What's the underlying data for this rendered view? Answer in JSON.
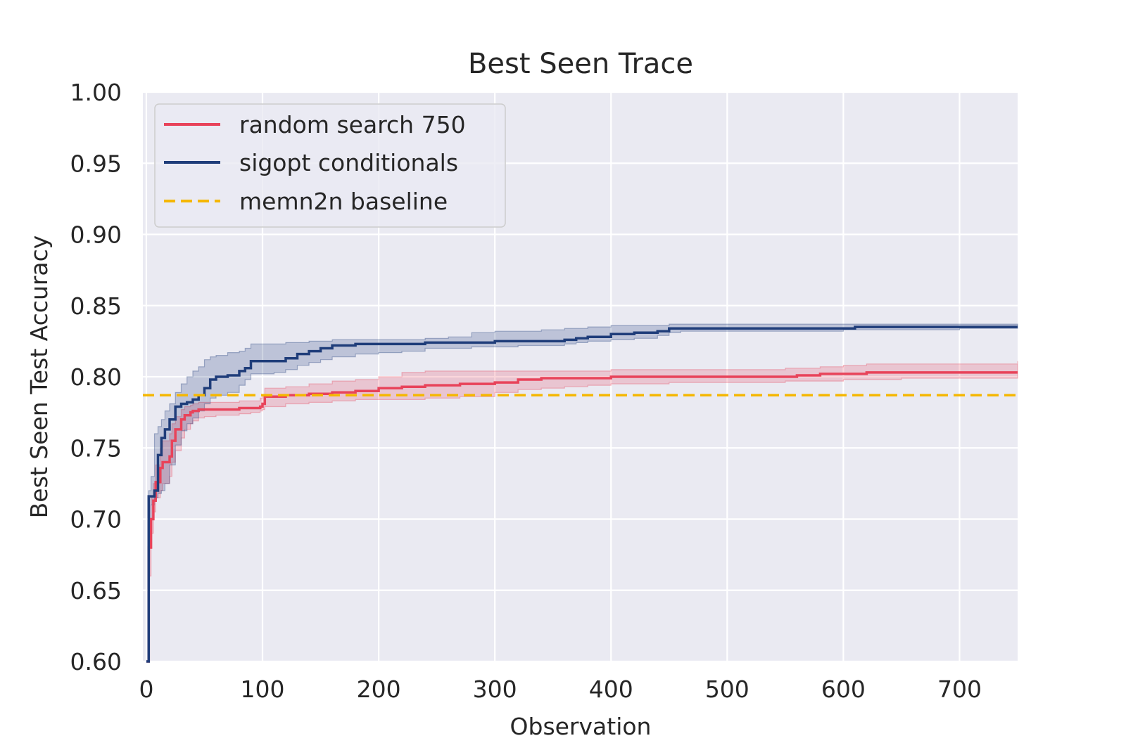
{
  "chart_data": {
    "type": "line",
    "title": "Best Seen Trace",
    "xlabel": "Observation",
    "ylabel": "Best Seen Test Accuracy",
    "xlim": [
      -3,
      750
    ],
    "ylim": [
      0.6,
      1.0
    ],
    "xticks": [
      0,
      100,
      200,
      300,
      400,
      500,
      600,
      700
    ],
    "yticks": [
      0.6,
      0.65,
      0.7,
      0.75,
      0.8,
      0.85,
      0.9,
      0.95,
      1.0
    ],
    "xtick_labels": [
      "0",
      "100",
      "200",
      "300",
      "400",
      "500",
      "600",
      "700"
    ],
    "ytick_labels": [
      "0.60",
      "0.65",
      "0.70",
      "0.75",
      "0.80",
      "0.85",
      "0.90",
      "0.95",
      "1.00"
    ],
    "grid": true,
    "legend_position": "top-left",
    "series": [
      {
        "name": "random search 750",
        "color": "#e8435a",
        "style": "step",
        "x": [
          0,
          2,
          4,
          6,
          8,
          12,
          14,
          20,
          22,
          25,
          30,
          33,
          38,
          40,
          45,
          50,
          60,
          80,
          90,
          98,
          100,
          102,
          120,
          140,
          160,
          180,
          200,
          220,
          240,
          270,
          300,
          320,
          340,
          360,
          380,
          400,
          450,
          500,
          550,
          560,
          580,
          600,
          620,
          650,
          700,
          750
        ],
        "y": [
          0.6,
          0.68,
          0.7,
          0.713,
          0.726,
          0.736,
          0.74,
          0.744,
          0.755,
          0.763,
          0.77,
          0.773,
          0.775,
          0.776,
          0.777,
          0.777,
          0.777,
          0.778,
          0.778,
          0.779,
          0.781,
          0.786,
          0.787,
          0.788,
          0.789,
          0.79,
          0.792,
          0.793,
          0.794,
          0.795,
          0.796,
          0.798,
          0.799,
          0.799,
          0.799,
          0.8,
          0.8,
          0.8,
          0.8,
          0.801,
          0.802,
          0.802,
          0.803,
          0.803,
          0.803,
          0.803
        ],
        "lower": [
          0.6,
          0.66,
          0.69,
          0.705,
          0.715,
          0.72,
          0.725,
          0.73,
          0.74,
          0.748,
          0.757,
          0.763,
          0.767,
          0.769,
          0.771,
          0.772,
          0.773,
          0.774,
          0.775,
          0.776,
          0.777,
          0.779,
          0.781,
          0.782,
          0.783,
          0.784,
          0.784,
          0.784,
          0.785,
          0.786,
          0.789,
          0.791,
          0.792,
          0.793,
          0.794,
          0.795,
          0.796,
          0.796,
          0.797,
          0.797,
          0.797,
          0.798,
          0.798,
          0.799,
          0.799,
          0.8
        ],
        "upper": [
          0.6,
          0.7,
          0.715,
          0.725,
          0.738,
          0.75,
          0.755,
          0.76,
          0.767,
          0.772,
          0.777,
          0.779,
          0.78,
          0.781,
          0.782,
          0.782,
          0.782,
          0.783,
          0.783,
          0.785,
          0.787,
          0.792,
          0.793,
          0.795,
          0.797,
          0.798,
          0.8,
          0.803,
          0.804,
          0.804,
          0.804,
          0.804,
          0.804,
          0.804,
          0.804,
          0.805,
          0.805,
          0.805,
          0.806,
          0.806,
          0.807,
          0.808,
          0.809,
          0.809,
          0.809,
          0.811
        ]
      },
      {
        "name": "sigopt conditionals",
        "color": "#1f3d7a",
        "style": "step",
        "x": [
          0,
          2,
          4,
          7,
          10,
          13,
          16,
          20,
          25,
          30,
          35,
          40,
          45,
          50,
          55,
          60,
          70,
          80,
          85,
          90,
          100,
          110,
          120,
          130,
          140,
          150,
          160,
          180,
          200,
          220,
          240,
          260,
          280,
          300,
          320,
          340,
          360,
          370,
          380,
          400,
          420,
          440,
          450,
          460,
          500,
          550,
          600,
          610,
          650,
          700,
          750
        ],
        "y": [
          0.6,
          0.716,
          0.716,
          0.72,
          0.745,
          0.757,
          0.763,
          0.77,
          0.779,
          0.781,
          0.782,
          0.784,
          0.787,
          0.792,
          0.798,
          0.8,
          0.801,
          0.804,
          0.806,
          0.811,
          0.811,
          0.811,
          0.813,
          0.816,
          0.818,
          0.82,
          0.822,
          0.823,
          0.823,
          0.823,
          0.824,
          0.824,
          0.824,
          0.825,
          0.825,
          0.825,
          0.826,
          0.827,
          0.828,
          0.83,
          0.831,
          0.832,
          0.834,
          0.834,
          0.834,
          0.834,
          0.834,
          0.835,
          0.835,
          0.835,
          0.835
        ],
        "lower": [
          0.6,
          0.7,
          0.71,
          0.715,
          0.718,
          0.72,
          0.725,
          0.738,
          0.752,
          0.762,
          0.767,
          0.771,
          0.776,
          0.781,
          0.785,
          0.787,
          0.789,
          0.794,
          0.798,
          0.802,
          0.802,
          0.803,
          0.805,
          0.808,
          0.81,
          0.812,
          0.814,
          0.816,
          0.817,
          0.818,
          0.82,
          0.82,
          0.821,
          0.821,
          0.822,
          0.822,
          0.823,
          0.824,
          0.825,
          0.826,
          0.827,
          0.829,
          0.831,
          0.832,
          0.832,
          0.832,
          0.833,
          0.833,
          0.833,
          0.834,
          0.834
        ],
        "upper": [
          0.6,
          0.72,
          0.73,
          0.76,
          0.765,
          0.77,
          0.776,
          0.781,
          0.789,
          0.795,
          0.8,
          0.804,
          0.807,
          0.812,
          0.814,
          0.815,
          0.817,
          0.818,
          0.82,
          0.823,
          0.823,
          0.823,
          0.824,
          0.824,
          0.825,
          0.825,
          0.826,
          0.826,
          0.826,
          0.826,
          0.827,
          0.828,
          0.831,
          0.832,
          0.832,
          0.833,
          0.834,
          0.834,
          0.835,
          0.836,
          0.836,
          0.836,
          0.837,
          0.837,
          0.837,
          0.837,
          0.837,
          0.837,
          0.837,
          0.837,
          0.837
        ]
      },
      {
        "name": "memn2n baseline",
        "color": "#f5b700",
        "style": "dashed",
        "x": [
          -3,
          750
        ],
        "y": [
          0.787,
          0.787
        ]
      }
    ]
  }
}
